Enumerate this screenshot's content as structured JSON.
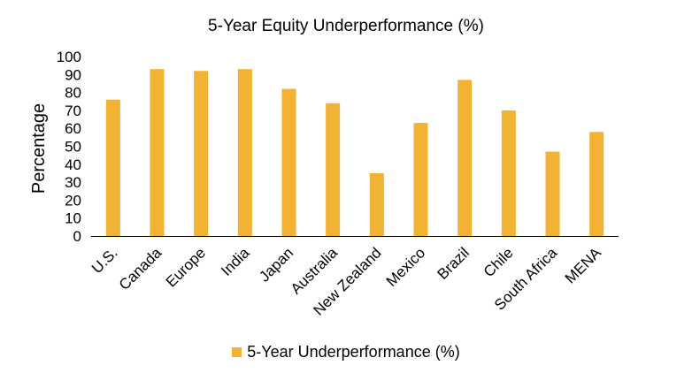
{
  "chart_data": {
    "type": "bar",
    "title": "5-Year Equity Underperformance (%)",
    "xlabel": "",
    "ylabel": "Percentage",
    "categories": [
      "U.S.",
      "Canada",
      "Europe",
      "India",
      "Japan",
      "Australia",
      "New Zealand",
      "Mexico",
      "Brazil",
      "Chile",
      "South Africa",
      "MENA"
    ],
    "series": [
      {
        "name": "5-Year Underperformance (%)",
        "values": [
          76,
          93,
          92,
          93,
          82,
          74,
          35,
          63,
          87,
          70,
          47,
          58
        ],
        "color": "#F2B233"
      }
    ],
    "ylim": [
      0,
      100
    ],
    "yticks": [
      0,
      10,
      20,
      30,
      40,
      50,
      60,
      70,
      80,
      90,
      100
    ],
    "grid": false,
    "legend": "bottom"
  }
}
